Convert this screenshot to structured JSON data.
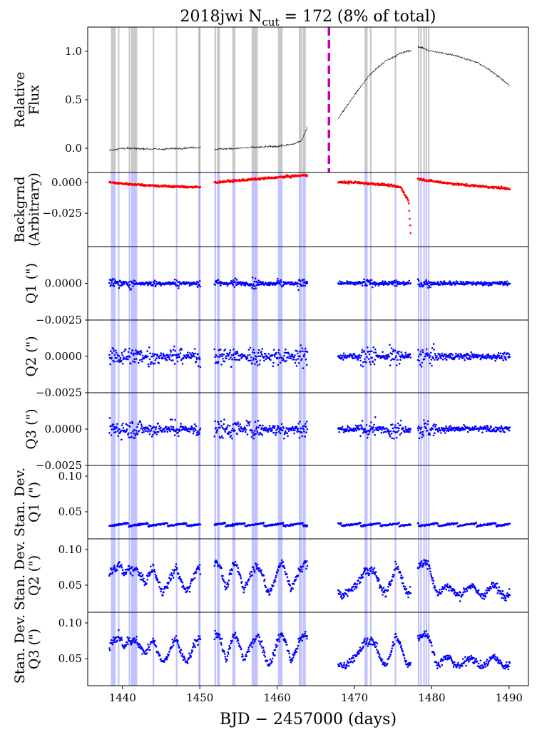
{
  "chart_data": {
    "type": "scatter",
    "title": "2018jwi  N",
    "title_sub": "cut",
    "title_tail": " = 172 (8% of total)",
    "xlabel": "BJD − 2457000 (days)",
    "xlim": [
      1435.5,
      1492.5
    ],
    "xticks": [
      1440,
      1450,
      1460,
      1470,
      1480,
      1490
    ],
    "xtick_labels": [
      "1440",
      "1450",
      "1460",
      "1470",
      "1480",
      "1490"
    ],
    "vline_x": 1466.7,
    "vline_color": "#bf00bf",
    "gaps": [
      [
        1450.1,
        1451.9
      ],
      [
        1463.9,
        1467.9
      ],
      [
        1477.3,
        1478.2
      ]
    ],
    "cut_times": [
      1438.6,
      1438.8,
      1439.0,
      1439.5,
      1440.9,
      1441.2,
      1441.4,
      1441.6,
      1441.8,
      1444.0,
      1447.0,
      1449.9,
      1450.0,
      1452.0,
      1452.3,
      1452.5,
      1454.3,
      1454.5,
      1456.8,
      1457.0,
      1457.2,
      1457.4,
      1460.2,
      1460.4,
      1460.6,
      1462.9,
      1463.1,
      1463.4,
      1463.6,
      1471.4,
      1471.6,
      1472.1,
      1475.3,
      1478.3,
      1478.6,
      1479.0,
      1479.3,
      1479.6
    ],
    "panels": [
      {
        "name": "flux",
        "ylabel": [
          "Relative",
          "Flux"
        ],
        "ylim": [
          -0.25,
          1.25
        ],
        "yticks": [
          0.0,
          0.5,
          1.0
        ],
        "ytick_labels": [
          "0.0",
          "0.5",
          "1.0"
        ],
        "color": "#000000",
        "style": "line"
      },
      {
        "name": "background",
        "ylabel": [
          "Backgrnd",
          "(Arbitrary)"
        ],
        "ylim": [
          -0.052,
          0.008
        ],
        "yticks": [
          -0.025,
          0.0
        ],
        "ytick_labels": [
          "−0.025",
          "0.000"
        ],
        "color": "#ff0000",
        "style": "dots"
      },
      {
        "name": "q1",
        "ylabel": [
          "Q1 (\")"
        ],
        "ylim": [
          -0.0025,
          0.0025
        ],
        "yticks": [
          -0.0025,
          0.0
        ],
        "ytick_labels": [
          "−0.0025",
          "0.0000"
        ],
        "color": "#0000ff",
        "style": "dots"
      },
      {
        "name": "q2",
        "ylabel": [
          "Q2 (\")"
        ],
        "ylim": [
          -0.0025,
          0.0025
        ],
        "yticks": [
          -0.0025,
          0.0
        ],
        "ytick_labels": [
          "−0.0025",
          "0.0000"
        ],
        "color": "#0000ff",
        "style": "dots"
      },
      {
        "name": "q3",
        "ylabel": [
          "Q3 (\")"
        ],
        "ylim": [
          -0.0025,
          0.0025
        ],
        "yticks": [
          -0.0025,
          0.0
        ],
        "ytick_labels": [
          "−0.0025",
          "0.0000"
        ],
        "color": "#0000ff",
        "style": "dots"
      },
      {
        "name": "std-q1",
        "ylabel": [
          "Stan. Dev.",
          "Q1 (\")"
        ],
        "ylim": [
          0.012,
          0.115
        ],
        "yticks": [
          0.05,
          0.1
        ],
        "ytick_labels": [
          "0.05",
          "0.10"
        ],
        "color": "#0000ff",
        "style": "dots"
      },
      {
        "name": "std-q2",
        "ylabel": [
          "Stan. Dev.",
          "Q2 (\")"
        ],
        "ylim": [
          0.012,
          0.115
        ],
        "yticks": [
          0.05,
          0.1
        ],
        "ytick_labels": [
          "0.05",
          "0.10"
        ],
        "color": "#0000ff",
        "style": "dots"
      },
      {
        "name": "std-q3",
        "ylabel": [
          "Stan. Dev.",
          "Q3 (\")"
        ],
        "ylim": [
          0.012,
          0.115
        ],
        "yticks": [
          0.05,
          0.1
        ],
        "ytick_labels": [
          "0.05",
          "0.10"
        ],
        "color": "#0000ff",
        "style": "dots"
      }
    ],
    "light_curve_knots": [
      [
        1438.3,
        -0.02
      ],
      [
        1440,
        0.0
      ],
      [
        1445,
        -0.01
      ],
      [
        1450,
        0.01
      ],
      [
        1451.9,
        -0.01
      ],
      [
        1455,
        0.0
      ],
      [
        1460,
        0.02
      ],
      [
        1462,
        0.04
      ],
      [
        1463.2,
        0.08
      ],
      [
        1463.9,
        0.22
      ],
      [
        1467.9,
        0.31
      ],
      [
        1470,
        0.55
      ],
      [
        1472,
        0.76
      ],
      [
        1474,
        0.9
      ],
      [
        1476,
        0.98
      ],
      [
        1477.3,
        1.01
      ],
      [
        1478.2,
        1.05
      ],
      [
        1480,
        1.0
      ],
      [
        1483,
        0.96
      ],
      [
        1486,
        0.88
      ],
      [
        1488,
        0.78
      ],
      [
        1490,
        0.65
      ]
    ],
    "background_knots": [
      [
        1438.3,
        0.0
      ],
      [
        1440,
        -0.001
      ],
      [
        1445,
        -0.003
      ],
      [
        1450,
        -0.004
      ],
      [
        1451.9,
        0.0
      ],
      [
        1456,
        0.002
      ],
      [
        1460,
        0.004
      ],
      [
        1463.9,
        0.006
      ],
      [
        1467.9,
        0.0
      ],
      [
        1470,
        0.0
      ],
      [
        1474,
        -0.002
      ],
      [
        1476,
        -0.004
      ],
      [
        1477.0,
        -0.015
      ],
      [
        1477.3,
        -0.045
      ],
      [
        1478.2,
        0.003
      ],
      [
        1480,
        0.001
      ],
      [
        1484,
        -0.002
      ],
      [
        1488,
        -0.004
      ],
      [
        1490,
        -0.005
      ]
    ],
    "std_q1_level": 0.03,
    "std_q2_level": 0.035,
    "std_q3_level": 0.038
  }
}
